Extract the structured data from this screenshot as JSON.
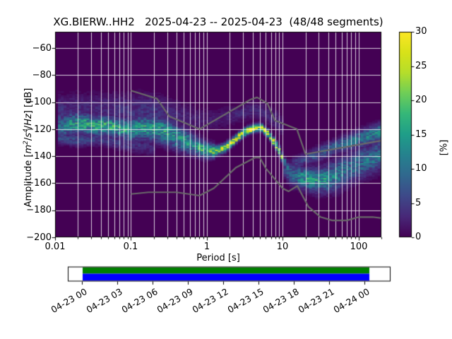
{
  "title": "XG.BIERW..HH2   2025-04-23 -- 2025-04-23  (48/48 segments)",
  "axes": {
    "x": {
      "label": "Period [s]",
      "tick_labels": [
        "0.01",
        "0.1",
        "1",
        "10",
        "100"
      ],
      "tick_values": [
        0.01,
        0.1,
        1,
        10,
        100
      ],
      "lim": [
        0.01,
        200
      ],
      "scale": "log"
    },
    "y": {
      "label_text": "Amplitude [m2/s4/Hz] [dB]",
      "label_parts": {
        "pre": "Amplitude [",
        "m": "m",
        "m_exp": "2",
        "sl1": "/",
        "s": "s",
        "s_exp": "4",
        "sl2": "/",
        "hz": "Hz",
        "post": "] [dB]"
      },
      "tick_labels": [
        "−60",
        "−80",
        "−100",
        "−120",
        "−140",
        "−160",
        "−180",
        "−200"
      ],
      "tick_values": [
        -60,
        -80,
        -100,
        -120,
        -140,
        -160,
        -180,
        -200
      ],
      "lim": [
        -200,
        -48
      ]
    }
  },
  "colorbar": {
    "label": "[%]",
    "tick_labels": [
      "0",
      "5",
      "10",
      "15",
      "20",
      "25",
      "30"
    ],
    "tick_values": [
      0,
      5,
      10,
      15,
      20,
      25,
      30
    ],
    "lim": [
      0,
      30
    ],
    "colormap": "viridis",
    "stops": [
      [
        0.0,
        "#440154"
      ],
      [
        0.1,
        "#482878"
      ],
      [
        0.2,
        "#3e4989"
      ],
      [
        0.3,
        "#31688e"
      ],
      [
        0.4,
        "#26828e"
      ],
      [
        0.5,
        "#1f9e89"
      ],
      [
        0.6,
        "#35b779"
      ],
      [
        0.7,
        "#6ece58"
      ],
      [
        0.8,
        "#b5de2b"
      ],
      [
        0.9,
        "#d8e219"
      ],
      [
        1.0,
        "#fde725"
      ]
    ]
  },
  "timeline": {
    "tick_labels": [
      "04-23 00",
      "04-23 03",
      "04-23 06",
      "04-23 09",
      "04-23 12",
      "04-23 15",
      "04-23 18",
      "04-23 21",
      "04-24 00"
    ],
    "coverage_color_top": "#008000",
    "coverage_color_bottom": "#0000ff",
    "box_color": "#ffffff"
  },
  "colors": {
    "background_zero_prob": "#440154",
    "grid": "rgba(255,255,255,0.8)",
    "noise_model_line": "#6a6a6a",
    "spine": "#000000"
  },
  "chart_data": {
    "type": "heatmap",
    "title": "XG.BIERW..HH2   2025-04-23 -- 2025-04-23  (48/48 segments)",
    "station": "XG.BIERW..HH2",
    "date_range": "2025-04-23 -- 2025-04-23",
    "segments": "48/48",
    "xlabel": "Period [s]",
    "ylabel": "Amplitude [m2/s4/Hz] [dB]",
    "colorbar_label": "[%]",
    "xlim": [
      0.01,
      200
    ],
    "ylim": [
      -200,
      -48
    ],
    "clim": [
      0,
      30
    ],
    "x_scale": "log",
    "grid": true,
    "db_bin_width": 1,
    "period_bin_decades": 0.037629,
    "ridges": [
      {
        "name": "short-period-band",
        "points": [
          [
            0.011,
            -118,
            9,
            6
          ],
          [
            0.016,
            -116,
            13,
            5
          ],
          [
            0.022,
            -115.5,
            15,
            5
          ],
          [
            0.03,
            -117,
            16,
            4.5
          ],
          [
            0.05,
            -117.5,
            16,
            4.5
          ],
          [
            0.07,
            -119,
            15,
            4.5
          ],
          [
            0.1,
            -120.5,
            13,
            5.5
          ],
          [
            0.14,
            -118.5,
            14,
            5.5
          ],
          [
            0.2,
            -119.5,
            15,
            5.5
          ],
          [
            0.3,
            -122,
            14,
            6
          ],
          [
            0.45,
            -127,
            13,
            5.5
          ],
          [
            0.7,
            -132,
            14,
            4.5
          ],
          [
            1.0,
            -135.5,
            17,
            3.5
          ],
          [
            1.3,
            -136,
            20,
            3
          ]
        ]
      },
      {
        "name": "microseism-ridge",
        "points": [
          [
            1.3,
            -136,
            20,
            2.2
          ],
          [
            1.7,
            -134,
            23,
            2.0
          ],
          [
            2.1,
            -130,
            26,
            1.8
          ],
          [
            2.7,
            -125,
            29,
            1.7
          ],
          [
            3.4,
            -121,
            30,
            1.7
          ],
          [
            4.3,
            -119,
            30,
            1.7
          ],
          [
            5.2,
            -118.5,
            30,
            1.7
          ],
          [
            6.2,
            -122,
            28,
            1.7
          ],
          [
            7.2,
            -127,
            26,
            1.7
          ],
          [
            8.2,
            -132,
            24,
            1.8
          ],
          [
            9.2,
            -137,
            22,
            1.9
          ],
          [
            10.3,
            -143,
            17,
            2.0
          ],
          [
            11.5,
            -148,
            11,
            2.2
          ],
          [
            13.0,
            -152,
            7,
            2.5
          ]
        ]
      },
      {
        "name": "long-period-bowl",
        "points": [
          [
            10,
            -149,
            5,
            4
          ],
          [
            13,
            -153,
            9,
            5
          ],
          [
            18,
            -156,
            13,
            5
          ],
          [
            26,
            -157.5,
            14,
            5.5
          ],
          [
            38,
            -157,
            13,
            6
          ],
          [
            55,
            -153,
            11,
            7
          ],
          [
            80,
            -148,
            10,
            7
          ],
          [
            115,
            -144,
            10,
            7
          ],
          [
            160,
            -141,
            10,
            7
          ],
          [
            210,
            -138,
            10,
            7
          ]
        ]
      },
      {
        "name": "long-period-upper-branch",
        "points": [
          [
            13,
            -146,
            4,
            3
          ],
          [
            20,
            -142,
            6,
            3
          ],
          [
            30,
            -138,
            7,
            3.5
          ],
          [
            50,
            -133,
            8,
            3.5
          ],
          [
            80,
            -129,
            10,
            4
          ],
          [
            120,
            -126,
            11,
            4
          ],
          [
            170,
            -123,
            12,
            4
          ],
          [
            210,
            -121,
            12,
            4
          ]
        ]
      },
      {
        "name": "upper-halo",
        "points": [
          [
            0.011,
            -106,
            4,
            7
          ],
          [
            0.04,
            -104,
            3,
            7
          ],
          [
            0.1,
            -107,
            4,
            8
          ],
          [
            0.2,
            -106,
            4,
            8
          ],
          [
            0.4,
            -110,
            3,
            7
          ],
          [
            0.8,
            -113,
            2,
            6
          ],
          [
            1.5,
            -112,
            2,
            5
          ],
          [
            2.5,
            -109,
            3,
            4
          ],
          [
            4.2,
            -105,
            3,
            4
          ],
          [
            6.0,
            -108,
            3,
            4.5
          ],
          [
            8.5,
            -114,
            3,
            5
          ],
          [
            10.5,
            -120,
            2,
            5
          ]
        ]
      },
      {
        "name": "low-streak",
        "points": [
          [
            0.011,
            -126,
            6,
            3
          ],
          [
            0.02,
            -128,
            6,
            3
          ],
          [
            0.04,
            -127,
            5,
            3
          ],
          [
            0.09,
            -131,
            4,
            3.5
          ],
          [
            0.2,
            -134,
            3,
            3.5
          ]
        ]
      }
    ],
    "noise_models": {
      "nhnm": [
        [
          0.1,
          -91.5
        ],
        [
          0.22,
          -97.4
        ],
        [
          0.32,
          -110.5
        ],
        [
          0.8,
          -120.0
        ],
        [
          3.8,
          -98.0
        ],
        [
          4.6,
          -96.5
        ],
        [
          6.3,
          -101.0
        ],
        [
          7.9,
          -113.5
        ],
        [
          15.4,
          -120.0
        ],
        [
          20.0,
          -138.5
        ],
        [
          354.8,
          -126.0
        ]
      ],
      "nlnm": [
        [
          0.1,
          -168.0
        ],
        [
          0.17,
          -166.7
        ],
        [
          0.4,
          -166.7
        ],
        [
          0.8,
          -169.2
        ],
        [
          1.24,
          -163.7
        ],
        [
          2.4,
          -148.6
        ],
        [
          4.3,
          -141.1
        ],
        [
          5.0,
          -141.1
        ],
        [
          6.0,
          -149.0
        ],
        [
          10.0,
          -163.8
        ],
        [
          12.0,
          -166.0
        ],
        [
          15.6,
          -162.0
        ],
        [
          21.9,
          -177.5
        ],
        [
          31.6,
          -185.0
        ],
        [
          45.0,
          -187.5
        ],
        [
          70.0,
          -187.5
        ],
        [
          101.0,
          -185.0
        ],
        [
          154.0,
          -185.0
        ],
        [
          328.0,
          -187.5
        ]
      ]
    }
  }
}
